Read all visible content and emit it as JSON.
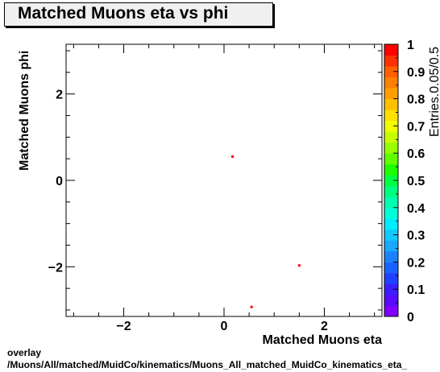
{
  "title": "Matched Muons eta vs phi",
  "footer": {
    "line1": "overlay",
    "line2": "/Muons/All/matched/MuidCo/kinematics/Muons_All_matched_MuidCo_kinematics_eta_"
  },
  "chart_data": {
    "type": "heatmap",
    "xlabel": "Matched Muons eta",
    "ylabel": "Matched Muons phi",
    "zlabel": "Entries.0.05/0.5",
    "xlim": [
      -3.15,
      3.15
    ],
    "ylim": [
      -3.15,
      3.15
    ],
    "zlim": [
      0,
      1
    ],
    "x_ticks": [
      -2,
      0,
      2
    ],
    "x_tick_labels": [
      "−2",
      "0",
      "2"
    ],
    "y_ticks": [
      -2,
      0,
      2
    ],
    "y_tick_labels": [
      "−2",
      "0",
      "2"
    ],
    "z_ticks": [
      0,
      0.1,
      0.2,
      0.3,
      0.4,
      0.5,
      0.6,
      0.7,
      0.8,
      0.9,
      1
    ],
    "z_tick_labels": [
      "0",
      "0.1",
      "0.2",
      "0.3",
      "0.4",
      "0.5",
      "0.6",
      "0.7",
      "0.8",
      "0.9",
      "1"
    ],
    "points": [
      {
        "x": 0.17,
        "y": 0.55,
        "z": 1
      },
      {
        "x": 1.5,
        "y": -1.97,
        "z": 1
      },
      {
        "x": 0.55,
        "y": -2.93,
        "z": 1
      }
    ],
    "palette": [
      "#7f00ff",
      "#5a0aff",
      "#3a1eff",
      "#2040ff",
      "#1a62ff",
      "#1a82ff",
      "#18a8ff",
      "#12c8ff",
      "#00ecff",
      "#00ffd8",
      "#00ffb0",
      "#00ff80",
      "#00ff40",
      "#20ff00",
      "#60ff00",
      "#98ff00",
      "#c8ff00",
      "#f0ff00",
      "#ffe000",
      "#ffc000",
      "#ffa000",
      "#ff8000",
      "#ff6000",
      "#ff3000",
      "#ff0000"
    ],
    "point_color": "#ff0000"
  }
}
